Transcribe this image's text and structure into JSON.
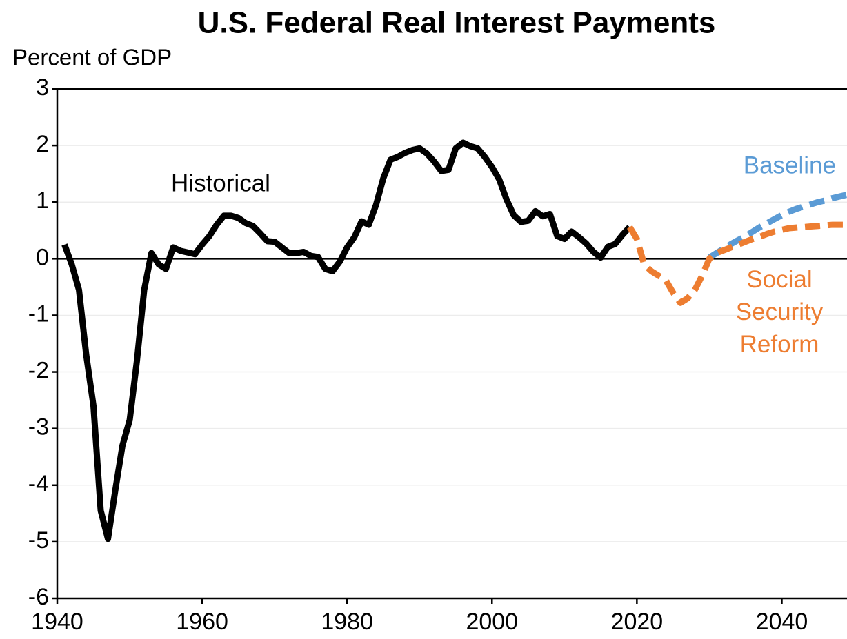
{
  "chart_data": {
    "type": "line",
    "title": "U.S. Federal Real Interest Payments",
    "y_label": "Percent of GDP",
    "xlim": [
      1940,
      2049
    ],
    "ylim": [
      -6,
      3
    ],
    "xticks": [
      1940,
      1960,
      1980,
      2000,
      2020,
      2040
    ],
    "yticks": [
      -6,
      -5,
      -4,
      -3,
      -2,
      -1,
      0,
      1,
      2,
      3
    ],
    "grid": true,
    "series": [
      {
        "name": "Historical",
        "color": "#000000",
        "dashed": false,
        "x": [
          1941,
          1942,
          1943,
          1944,
          1945,
          1946,
          1947,
          1948,
          1949,
          1950,
          1951,
          1952,
          1953,
          1954,
          1955,
          1956,
          1957,
          1958,
          1959,
          1960,
          1961,
          1962,
          1963,
          1964,
          1965,
          1966,
          1967,
          1968,
          1969,
          1970,
          1971,
          1972,
          1973,
          1974,
          1975,
          1976,
          1977,
          1978,
          1979,
          1980,
          1981,
          1982,
          1983,
          1984,
          1985,
          1986,
          1987,
          1988,
          1989,
          1990,
          1991,
          1992,
          1993,
          1994,
          1995,
          1996,
          1997,
          1998,
          1999,
          2000,
          2001,
          2002,
          2003,
          2004,
          2005,
          2006,
          2007,
          2008,
          2009,
          2010,
          2011,
          2012,
          2013,
          2014,
          2015,
          2016,
          2017,
          2018,
          2019
        ],
        "values": [
          0.25,
          -0.1,
          -0.55,
          -1.7,
          -2.6,
          -4.45,
          -4.95,
          -4.1,
          -3.3,
          -2.85,
          -1.8,
          -0.55,
          0.1,
          -0.1,
          -0.18,
          0.2,
          0.14,
          0.11,
          0.08,
          0.25,
          0.4,
          0.6,
          0.76,
          0.76,
          0.72,
          0.63,
          0.58,
          0.45,
          0.31,
          0.3,
          0.2,
          0.1,
          0.1,
          0.12,
          0.05,
          0.03,
          -0.18,
          -0.22,
          -0.05,
          0.2,
          0.38,
          0.66,
          0.6,
          0.95,
          1.42,
          1.75,
          1.8,
          1.87,
          1.92,
          1.95,
          1.86,
          1.72,
          1.55,
          1.57,
          1.95,
          2.05,
          1.99,
          1.95,
          1.8,
          1.62,
          1.4,
          1.05,
          0.77,
          0.65,
          0.67,
          0.84,
          0.75,
          0.79,
          0.4,
          0.35,
          0.48,
          0.38,
          0.27,
          0.12,
          0.02,
          0.21,
          0.26,
          0.42,
          0.56
        ]
      },
      {
        "name": "Baseline",
        "color": "#5b9bd5",
        "dashed": true,
        "x": [
          2030,
          2031,
          2032,
          2033,
          2034,
          2035,
          2036,
          2037,
          2038,
          2039,
          2040,
          2041,
          2042,
          2043,
          2044,
          2045,
          2046,
          2047,
          2048,
          2049
        ],
        "values": [
          0.02,
          0.1,
          0.18,
          0.26,
          0.33,
          0.4,
          0.48,
          0.56,
          0.63,
          0.7,
          0.77,
          0.83,
          0.88,
          0.92,
          0.96,
          1.0,
          1.03,
          1.07,
          1.1,
          1.13
        ]
      },
      {
        "name": "Social Security Reform",
        "color": "#ed7d31",
        "dashed": true,
        "x": [
          2019,
          2020,
          2021,
          2022,
          2023,
          2024,
          2025,
          2026,
          2027,
          2028,
          2029,
          2030,
          2031,
          2032,
          2033,
          2034,
          2035,
          2036,
          2037,
          2038,
          2039,
          2040,
          2041,
          2042,
          2043,
          2044,
          2045,
          2046,
          2047,
          2048,
          2049
        ],
        "values": [
          0.56,
          0.35,
          -0.1,
          -0.22,
          -0.3,
          -0.38,
          -0.6,
          -0.78,
          -0.7,
          -0.55,
          -0.3,
          0.0,
          0.1,
          0.15,
          0.2,
          0.25,
          0.3,
          0.35,
          0.39,
          0.44,
          0.48,
          0.51,
          0.54,
          0.55,
          0.56,
          0.57,
          0.58,
          0.59,
          0.6,
          0.6,
          0.6
        ]
      }
    ]
  }
}
